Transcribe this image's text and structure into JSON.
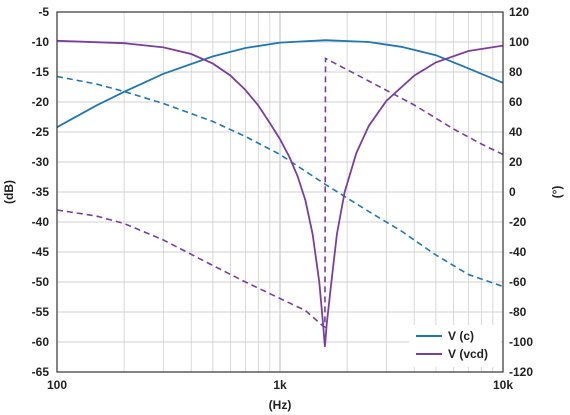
{
  "chart_data": {
    "type": "line",
    "title": "",
    "xlabel": "(Hz)",
    "ylabel_left": "(dB)",
    "ylabel_right": "(°)",
    "x_scale": "log",
    "xlim": [
      100,
      10000
    ],
    "ylim_left": [
      -65,
      -5
    ],
    "ylim_right": [
      -120,
      120
    ],
    "grid": true,
    "legend_position": "bottom-right",
    "x_ticks": [
      {
        "value": 100,
        "label": "100"
      },
      {
        "value": 1000,
        "label": "1k"
      },
      {
        "value": 10000,
        "label": "10k"
      }
    ],
    "y_ticks_left": [
      "-5",
      "-10",
      "-15",
      "-20",
      "-25",
      "-30",
      "-35",
      "-40",
      "-45",
      "-50",
      "-55",
      "-60",
      "-65"
    ],
    "y_ticks_right": [
      "120",
      "100",
      "80",
      "60",
      "40",
      "20",
      "0",
      "-20",
      "-40",
      "-60",
      "-80",
      "-100",
      "-120"
    ],
    "series": [
      {
        "name": "V (c)",
        "color": "#1f77b4",
        "magnitude_db": [
          [
            100,
            -24.2
          ],
          [
            150,
            -20.6
          ],
          [
            200,
            -18.3
          ],
          [
            300,
            -15.3
          ],
          [
            500,
            -12.4
          ],
          [
            700,
            -11.0
          ],
          [
            1000,
            -10.1
          ],
          [
            1600,
            -9.7
          ],
          [
            2500,
            -10.0
          ],
          [
            3500,
            -10.8
          ],
          [
            5000,
            -12.2
          ],
          [
            7000,
            -14.4
          ],
          [
            10000,
            -16.8
          ]
        ],
        "phase_deg": [
          [
            100,
            77
          ],
          [
            150,
            72
          ],
          [
            200,
            67
          ],
          [
            300,
            59
          ],
          [
            500,
            47
          ],
          [
            700,
            37
          ],
          [
            1000,
            25
          ],
          [
            1600,
            5
          ],
          [
            2500,
            -13
          ],
          [
            3500,
            -26
          ],
          [
            5000,
            -42
          ],
          [
            7000,
            -55
          ],
          [
            10000,
            -63
          ]
        ]
      },
      {
        "name": "V (vcd)",
        "color": "#7a3f9d",
        "magnitude_db": [
          [
            100,
            -9.8
          ],
          [
            200,
            -10.2
          ],
          [
            300,
            -10.9
          ],
          [
            400,
            -12.0
          ],
          [
            500,
            -13.6
          ],
          [
            600,
            -15.6
          ],
          [
            700,
            -18.0
          ],
          [
            800,
            -20.6
          ],
          [
            900,
            -23.5
          ],
          [
            1000,
            -26.2
          ],
          [
            1100,
            -29.1
          ],
          [
            1200,
            -32.4
          ],
          [
            1300,
            -36.4
          ],
          [
            1400,
            -42.0
          ],
          [
            1500,
            -50.0
          ],
          [
            1560,
            -57.0
          ],
          [
            1590,
            -60.8
          ],
          [
            1620,
            -57.0
          ],
          [
            1700,
            -50.0
          ],
          [
            1800,
            -42.0
          ],
          [
            1950,
            -35.0
          ],
          [
            2200,
            -28.5
          ],
          [
            2500,
            -24.0
          ],
          [
            3000,
            -19.8
          ],
          [
            4000,
            -15.6
          ],
          [
            5000,
            -13.4
          ],
          [
            7000,
            -11.5
          ],
          [
            10000,
            -10.6
          ]
        ],
        "phase_deg": [
          [
            100,
            -12
          ],
          [
            150,
            -16
          ],
          [
            200,
            -21
          ],
          [
            300,
            -32
          ],
          [
            500,
            -49
          ],
          [
            700,
            -60
          ],
          [
            1000,
            -71
          ],
          [
            1300,
            -79
          ],
          [
            1550,
            -89
          ],
          [
            1590,
            -90
          ],
          [
            1600,
            89
          ],
          [
            1650,
            88
          ],
          [
            2500,
            74
          ],
          [
            4000,
            58
          ],
          [
            6000,
            42
          ],
          [
            8000,
            32
          ],
          [
            10000,
            25
          ]
        ]
      }
    ]
  }
}
